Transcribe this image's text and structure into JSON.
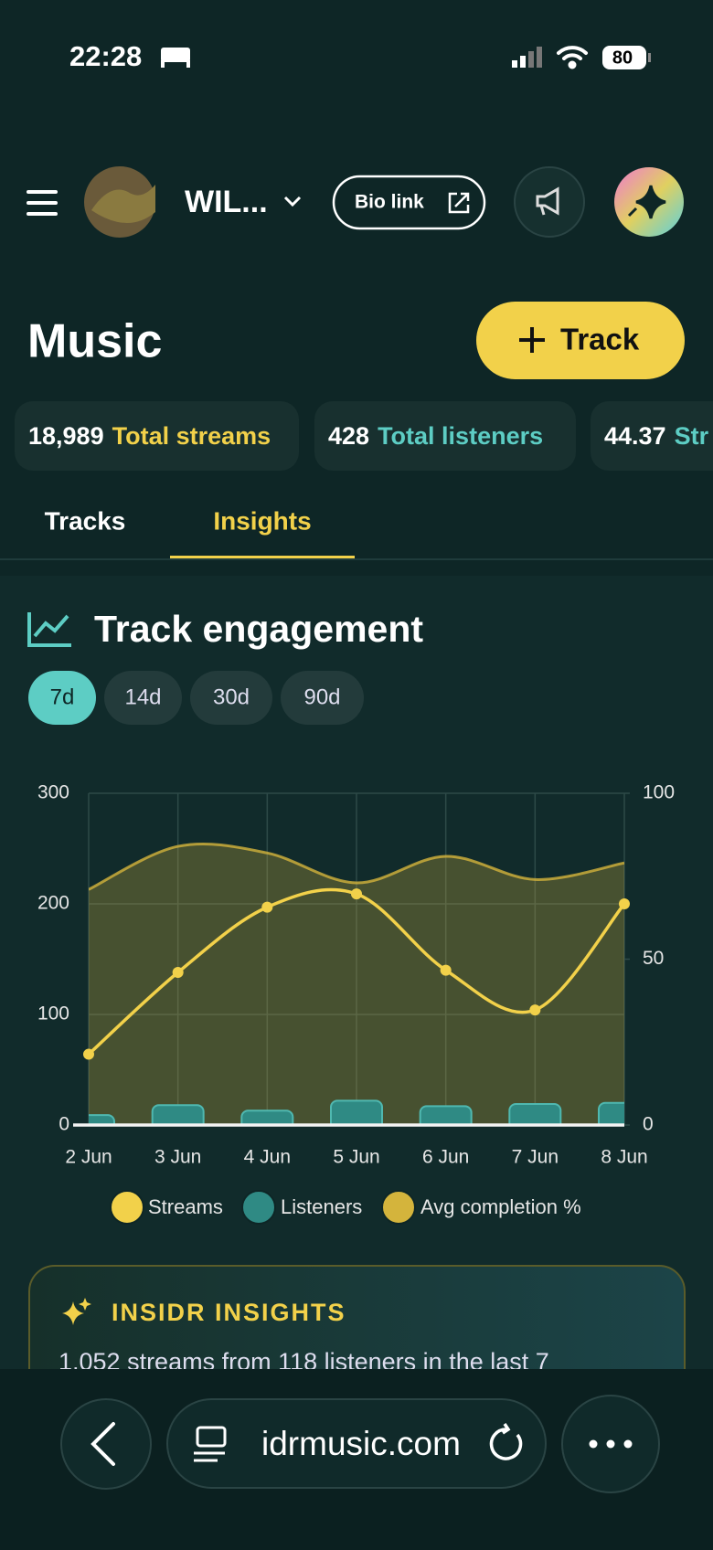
{
  "status_bar": {
    "time": "22:28",
    "battery": "80"
  },
  "header": {
    "artist": "WIL...",
    "bio_link": "Bio link"
  },
  "page": {
    "title": "Music",
    "add_button": "Track"
  },
  "stats": [
    {
      "value": "18,989",
      "label": "Total streams"
    },
    {
      "value": "428",
      "label": "Total listeners"
    },
    {
      "value": "44.37",
      "label": "Str"
    }
  ],
  "tabs": [
    "Tracks",
    "Insights"
  ],
  "range_options": [
    "7d",
    "14d",
    "30d",
    "90d"
  ],
  "chart_data": {
    "type": "combo",
    "title": "Track engagement",
    "categories": [
      "2 Jun",
      "3 Jun",
      "4 Jun",
      "5 Jun",
      "6 Jun",
      "7 Jun",
      "8 Jun"
    ],
    "series": [
      {
        "name": "Streams",
        "type": "line",
        "color": "#f2d14a",
        "values": [
          64,
          138,
          197,
          209,
          140,
          104,
          200
        ]
      },
      {
        "name": "Listeners",
        "type": "bar",
        "color": "#2f8a84",
        "values": [
          9,
          18,
          13,
          22,
          17,
          19,
          20
        ]
      },
      {
        "name": "Avg completion %",
        "type": "area",
        "axis": "y2",
        "color": "#d4b43c",
        "values": [
          71,
          84,
          82,
          73,
          81,
          74,
          79
        ]
      }
    ],
    "ylim": [
      0,
      300
    ],
    "yticks": [
      0,
      100,
      200,
      300
    ],
    "y2lim": [
      0,
      100
    ],
    "y2ticks": [
      0,
      50,
      100
    ],
    "grid": true
  },
  "insights": {
    "title": "INSIDR INSIGHTS",
    "text": "1,052 streams from 118 listeners in the last 7"
  },
  "browser": {
    "url": "idrmusic.com"
  }
}
